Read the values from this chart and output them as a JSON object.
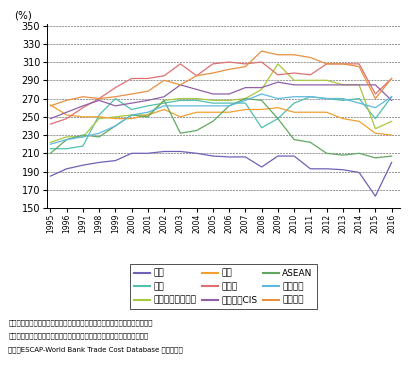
{
  "years": [
    1995,
    1996,
    1997,
    1998,
    1999,
    2000,
    2001,
    2002,
    2003,
    2004,
    2005,
    2006,
    2007,
    2008,
    2009,
    2010,
    2011,
    2012,
    2013,
    2014,
    2015,
    2016
  ],
  "series": [
    {
      "name": "北米",
      "values": [
        185,
        193,
        197,
        200,
        202,
        210,
        210,
        212,
        212,
        210,
        207,
        206,
        206,
        195,
        207,
        207,
        193,
        193,
        192,
        189,
        163,
        200
      ],
      "color": "#7060b8"
    },
    {
      "name": "欧州",
      "values": [
        215,
        215,
        218,
        252,
        270,
        258,
        262,
        265,
        268,
        268,
        265,
        265,
        265,
        238,
        248,
        265,
        272,
        270,
        268,
        270,
        248,
        272
      ],
      "color": "#50c0b0"
    },
    {
      "name": "東アジア・大洋州",
      "values": [
        222,
        228,
        228,
        248,
        250,
        252,
        252,
        268,
        270,
        270,
        268,
        268,
        270,
        280,
        308,
        290,
        290,
        290,
        285,
        285,
        237,
        245
      ],
      "color": "#a8c840"
    },
    {
      "name": "中東",
      "values": [
        263,
        252,
        250,
        250,
        248,
        248,
        252,
        258,
        250,
        255,
        255,
        255,
        258,
        258,
        260,
        255,
        255,
        255,
        248,
        245,
        232,
        230
      ],
      "color": "#f0a030"
    },
    {
      "name": "中南米",
      "values": [
        242,
        248,
        260,
        270,
        282,
        292,
        292,
        295,
        308,
        295,
        308,
        310,
        308,
        310,
        296,
        298,
        296,
        308,
        308,
        308,
        275,
        292
      ],
      "color": "#e07070"
    },
    {
      "name": "ロシア・CIS",
      "values": [
        248,
        255,
        262,
        268,
        262,
        265,
        268,
        272,
        285,
        280,
        275,
        275,
        282,
        282,
        288,
        285,
        285,
        285,
        285,
        285,
        285,
        268
      ],
      "color": "#9060a8"
    },
    {
      "name": "ASEAN",
      "values": [
        210,
        225,
        230,
        228,
        240,
        252,
        250,
        268,
        232,
        235,
        245,
        262,
        270,
        268,
        248,
        225,
        222,
        210,
        208,
        210,
        205,
        207
      ],
      "color": "#60a860"
    },
    {
      "name": "南アジア",
      "values": [
        220,
        225,
        228,
        232,
        240,
        252,
        255,
        262,
        262,
        262,
        262,
        262,
        268,
        275,
        270,
        272,
        272,
        270,
        270,
        265,
        260,
        272
      ],
      "color": "#60b8e0"
    },
    {
      "name": "アフリカ",
      "values": [
        262,
        268,
        272,
        270,
        272,
        275,
        278,
        290,
        285,
        295,
        298,
        302,
        305,
        322,
        318,
        318,
        315,
        308,
        308,
        305,
        270,
        292
      ],
      "color": "#e89040"
    }
  ],
  "ylim": [
    150,
    352
  ],
  "yticks": [
    150,
    170,
    190,
    210,
    230,
    250,
    270,
    290,
    310,
    330,
    350
  ],
  "ylabel": "(%)",
  "legend_ncol": 3,
  "legend_rows": [
    [
      "北米",
      "欧州",
      "東アジア・大洋州"
    ],
    [
      "中東",
      "中南米",
      "ロシア・CIS"
    ],
    [
      "ASEAN",
      "南アジア",
      "アフリカ"
    ]
  ],
  "note1": "備考：輸入国における製造業の貿易コストを地域ごとに単純平均して算出。",
  "note2": "　　　本貿易コストには、関税、輸送費、言語等の要素が含まれている。",
  "note3": "資料：ESCAP-World Bank Trade Cost Database から作成。"
}
